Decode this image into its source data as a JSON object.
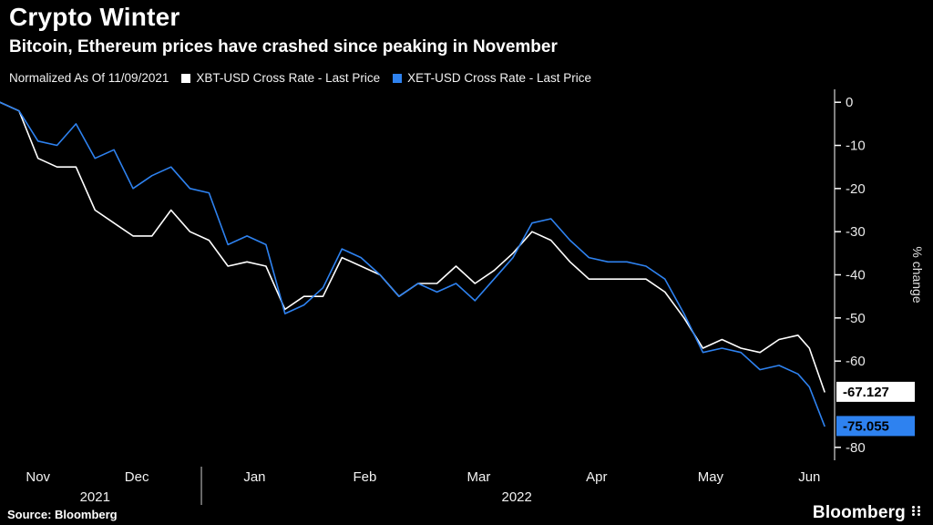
{
  "header": {
    "title": "Crypto Winter",
    "subtitle": "Bitcoin, Ethereum prices have crashed since peaking in November"
  },
  "legend": {
    "normalized_label": "Normalized As Of 11/09/2021",
    "series": [
      {
        "label": "XBT-USD Cross Rate - Last Price",
        "color": "#ffffff"
      },
      {
        "label": "XET-USD Cross Rate - Last Price",
        "color": "#2e82f0"
      }
    ]
  },
  "footer": {
    "source": "Source: Bloomberg",
    "brand": "Bloomberg"
  },
  "chart_data": {
    "type": "line",
    "title": "Crypto Winter",
    "subtitle": "Bitcoin, Ethereum prices have crashed since peaking in November",
    "ylabel": "% change",
    "ylim": [
      -83,
      3
    ],
    "grid": false,
    "legend_position": "top",
    "y_ticks": [
      0,
      -10,
      -20,
      -30,
      -40,
      -50,
      -60,
      -80
    ],
    "x_days": [
      0,
      5,
      10,
      15,
      20,
      25,
      30,
      35,
      40,
      45,
      50,
      55,
      60,
      65,
      70,
      75,
      80,
      85,
      90,
      95,
      100,
      105,
      110,
      115,
      120,
      125,
      130,
      135,
      140,
      145,
      150,
      155,
      160,
      165,
      170,
      175,
      180,
      185,
      190,
      195,
      200,
      205,
      210,
      213,
      217
    ],
    "x_start_date": "2021-11-09",
    "x_ticks": [
      {
        "label": "Nov",
        "day": 10
      },
      {
        "label": "Dec",
        "day": 36
      },
      {
        "label": "Jan",
        "day": 67
      },
      {
        "label": "Feb",
        "day": 96
      },
      {
        "label": "Mar",
        "day": 126
      },
      {
        "label": "Apr",
        "day": 157
      },
      {
        "label": "May",
        "day": 187
      },
      {
        "label": "Jun",
        "day": 213
      }
    ],
    "year_labels": [
      {
        "label": "2021",
        "day": 25
      },
      {
        "label": "2022",
        "day": 136
      }
    ],
    "year_divider_day": 53,
    "series": [
      {
        "name": "XBT-USD Cross Rate - Last Price",
        "color": "#ffffff",
        "last_price": -67.127,
        "last_price_label": "-67.127",
        "values": [
          0,
          -2,
          -13,
          -15,
          -15,
          -25,
          -28,
          -31,
          -31,
          -25,
          -30,
          -32,
          -38,
          -37,
          -38,
          -48,
          -45,
          -45,
          -36,
          -38,
          -40,
          -45,
          -42,
          -42,
          -38,
          -42,
          -39,
          -35,
          -30,
          -32,
          -37,
          -41,
          -41,
          -41,
          -41,
          -44,
          -50,
          -57,
          -55,
          -57,
          -58,
          -55,
          -54,
          -57,
          -67.127
        ]
      },
      {
        "name": "XET-USD Cross Rate - Last Price",
        "color": "#2e82f0",
        "last_price": -75.055,
        "last_price_label": "-75.055",
        "values": [
          0,
          -2,
          -9,
          -10,
          -5,
          -13,
          -11,
          -20,
          -17,
          -15,
          -20,
          -21,
          -33,
          -31,
          -33,
          -49,
          -47,
          -43,
          -34,
          -36,
          -40,
          -45,
          -42,
          -44,
          -42,
          -46,
          -41,
          -36,
          -28,
          -27,
          -32,
          -36,
          -37,
          -37,
          -38,
          -41,
          -49,
          -58,
          -57,
          -58,
          -62,
          -61,
          -63,
          -66,
          -75.055
        ]
      }
    ]
  }
}
